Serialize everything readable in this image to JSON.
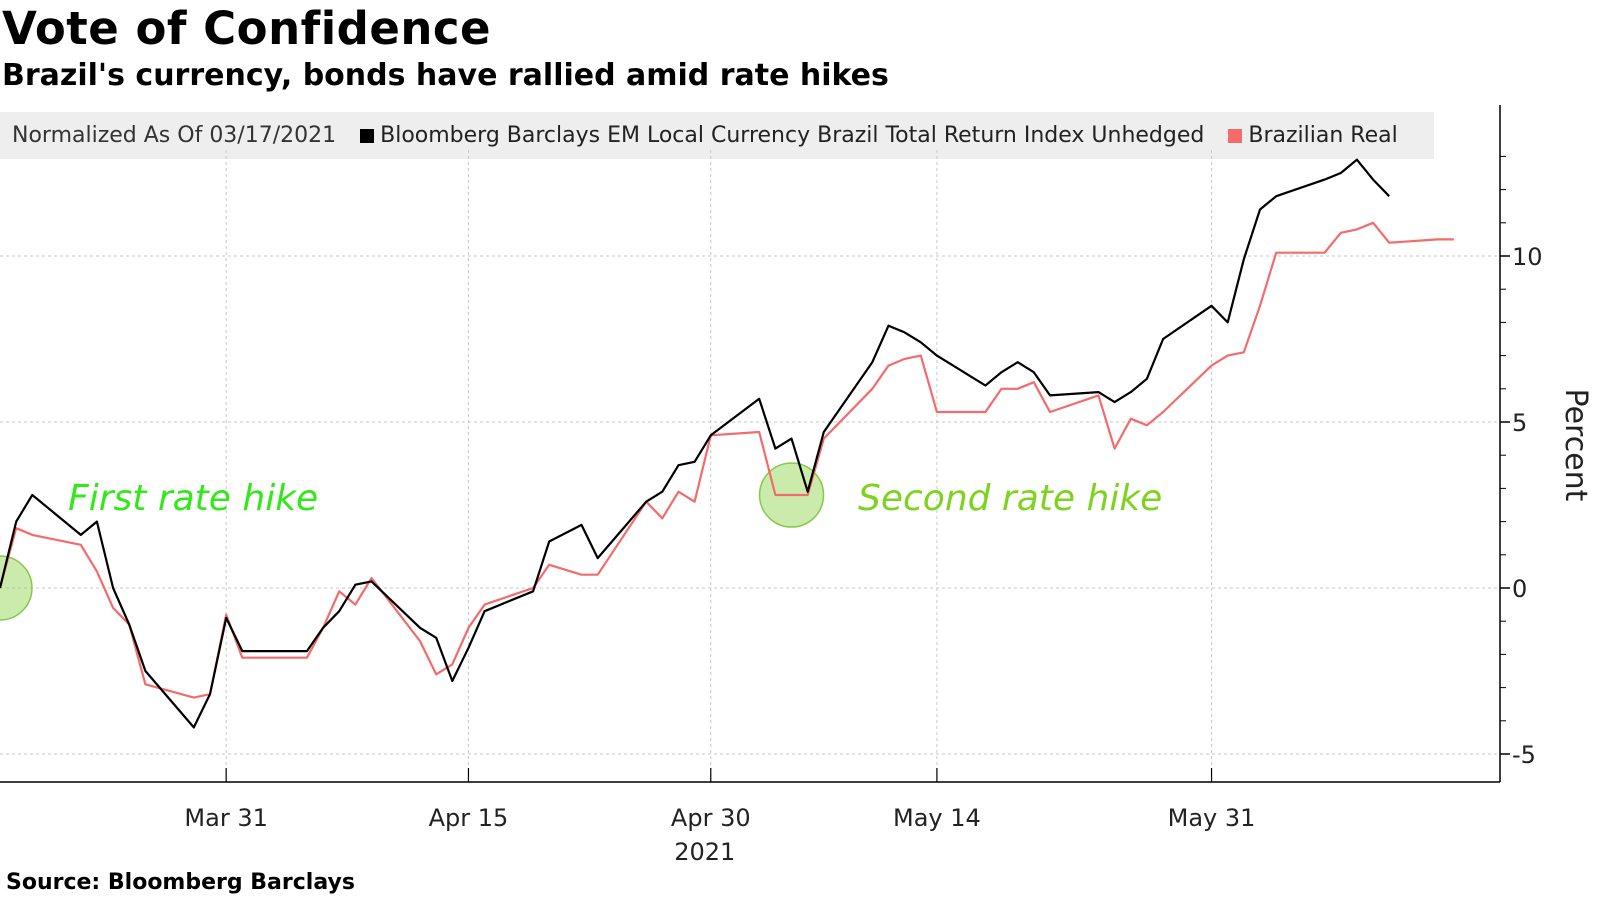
{
  "title": "Vote of Confidence",
  "subtitle": "Brazil's currency, bonds have rallied amid rate hikes",
  "source": "Source: Bloomberg Barclays",
  "legend": {
    "note": "Normalized As Of 03/17/2021",
    "items": [
      {
        "label": "Bloomberg Barclays EM Local Currency Brazil Total Return Index Unhedged",
        "color": "#000000"
      },
      {
        "label": "Brazilian Real",
        "color": "#f56a6a"
      }
    ]
  },
  "chart_data": {
    "type": "line",
    "ylabel": "Percent",
    "ylim": [
      -5.9,
      14.5
    ],
    "yticks": [
      "10",
      "5",
      "0",
      "-5"
    ],
    "xticks": [
      {
        "date": "2021-03-31",
        "label": "Mar 31"
      },
      {
        "date": "2021-04-15",
        "label": "Apr 15"
      },
      {
        "date": "2021-04-30",
        "label": "Apr 30"
      },
      {
        "date": "2021-05-14",
        "label": "May 14"
      },
      {
        "date": "2021-05-31",
        "label": "May 31"
      }
    ],
    "year_label": "2021",
    "grid": true,
    "series": [
      {
        "name": "Bloomberg Barclays EM Local Currency Brazil Total Return Index Unhedged",
        "color": "#000000",
        "points": [
          [
            "2021-03-17",
            0.0
          ],
          [
            "2021-03-18",
            2.0
          ],
          [
            "2021-03-19",
            2.8
          ],
          [
            "2021-03-22",
            1.6
          ],
          [
            "2021-03-23",
            2.0
          ],
          [
            "2021-03-24",
            0.0
          ],
          [
            "2021-03-25",
            -1.1
          ],
          [
            "2021-03-26",
            -2.5
          ],
          [
            "2021-03-29",
            -4.2
          ],
          [
            "2021-03-30",
            -3.2
          ],
          [
            "2021-03-31",
            -0.9
          ],
          [
            "2021-04-01",
            -1.9
          ],
          [
            "2021-04-05",
            -1.9
          ],
          [
            "2021-04-06",
            -1.2
          ],
          [
            "2021-04-07",
            -0.7
          ],
          [
            "2021-04-08",
            0.1
          ],
          [
            "2021-04-09",
            0.2
          ],
          [
            "2021-04-12",
            -1.2
          ],
          [
            "2021-04-13",
            -1.5
          ],
          [
            "2021-04-14",
            -2.8
          ],
          [
            "2021-04-15",
            -1.8
          ],
          [
            "2021-04-16",
            -0.7
          ],
          [
            "2021-04-19",
            -0.1
          ],
          [
            "2021-04-20",
            1.4
          ],
          [
            "2021-04-22",
            1.9
          ],
          [
            "2021-04-23",
            0.9
          ],
          [
            "2021-04-26",
            2.6
          ],
          [
            "2021-04-27",
            2.9
          ],
          [
            "2021-04-28",
            3.7
          ],
          [
            "2021-04-29",
            3.8
          ],
          [
            "2021-04-30",
            4.6
          ],
          [
            "2021-05-03",
            5.7
          ],
          [
            "2021-05-04",
            4.2
          ],
          [
            "2021-05-05",
            4.5
          ],
          [
            "2021-05-06",
            2.9
          ],
          [
            "2021-05-07",
            4.7
          ],
          [
            "2021-05-10",
            6.8
          ],
          [
            "2021-05-11",
            7.9
          ],
          [
            "2021-05-12",
            7.7
          ],
          [
            "2021-05-13",
            7.4
          ],
          [
            "2021-05-14",
            7.0
          ],
          [
            "2021-05-17",
            6.1
          ],
          [
            "2021-05-18",
            6.5
          ],
          [
            "2021-05-19",
            6.8
          ],
          [
            "2021-05-20",
            6.5
          ],
          [
            "2021-05-21",
            5.8
          ],
          [
            "2021-05-24",
            5.9
          ],
          [
            "2021-05-25",
            5.6
          ],
          [
            "2021-05-26",
            5.9
          ],
          [
            "2021-05-27",
            6.3
          ],
          [
            "2021-05-28",
            7.5
          ],
          [
            "2021-05-31",
            8.5
          ],
          [
            "2021-06-01",
            8.0
          ],
          [
            "2021-06-02",
            9.9
          ],
          [
            "2021-06-03",
            11.4
          ],
          [
            "2021-06-04",
            11.8
          ],
          [
            "2021-06-07",
            12.3
          ],
          [
            "2021-06-08",
            12.5
          ],
          [
            "2021-06-09",
            12.9
          ],
          [
            "2021-06-10",
            12.3
          ],
          [
            "2021-06-11",
            11.8
          ]
        ]
      },
      {
        "name": "Brazilian Real",
        "color": "#f56a6a",
        "points": [
          [
            "2021-03-17",
            0.0
          ],
          [
            "2021-03-18",
            1.8
          ],
          [
            "2021-03-19",
            1.6
          ],
          [
            "2021-03-22",
            1.3
          ],
          [
            "2021-03-23",
            0.5
          ],
          [
            "2021-03-24",
            -0.6
          ],
          [
            "2021-03-25",
            -1.1
          ],
          [
            "2021-03-26",
            -2.9
          ],
          [
            "2021-03-29",
            -3.3
          ],
          [
            "2021-03-30",
            -3.2
          ],
          [
            "2021-03-31",
            -0.8
          ],
          [
            "2021-04-01",
            -2.1
          ],
          [
            "2021-04-05",
            -2.1
          ],
          [
            "2021-04-06",
            -1.2
          ],
          [
            "2021-04-07",
            -0.1
          ],
          [
            "2021-04-08",
            -0.5
          ],
          [
            "2021-04-09",
            0.3
          ],
          [
            "2021-04-12",
            -1.6
          ],
          [
            "2021-04-13",
            -2.6
          ],
          [
            "2021-04-14",
            -2.3
          ],
          [
            "2021-04-15",
            -1.2
          ],
          [
            "2021-04-16",
            -0.5
          ],
          [
            "2021-04-19",
            0.0
          ],
          [
            "2021-04-20",
            0.7
          ],
          [
            "2021-04-22",
            0.4
          ],
          [
            "2021-04-23",
            0.4
          ],
          [
            "2021-04-26",
            2.6
          ],
          [
            "2021-04-27",
            2.1
          ],
          [
            "2021-04-28",
            2.9
          ],
          [
            "2021-04-29",
            2.6
          ],
          [
            "2021-04-30",
            4.6
          ],
          [
            "2021-05-03",
            4.7
          ],
          [
            "2021-05-04",
            2.8
          ],
          [
            "2021-05-05",
            2.8
          ],
          [
            "2021-05-06",
            2.8
          ],
          [
            "2021-05-07",
            4.5
          ],
          [
            "2021-05-10",
            6.0
          ],
          [
            "2021-05-11",
            6.7
          ],
          [
            "2021-05-12",
            6.9
          ],
          [
            "2021-05-13",
            7.0
          ],
          [
            "2021-05-14",
            5.3
          ],
          [
            "2021-05-17",
            5.3
          ],
          [
            "2021-05-18",
            6.0
          ],
          [
            "2021-05-19",
            6.0
          ],
          [
            "2021-05-20",
            6.2
          ],
          [
            "2021-05-21",
            5.3
          ],
          [
            "2021-05-24",
            5.8
          ],
          [
            "2021-05-25",
            4.2
          ],
          [
            "2021-05-26",
            5.1
          ],
          [
            "2021-05-27",
            4.9
          ],
          [
            "2021-05-28",
            5.3
          ],
          [
            "2021-05-31",
            6.7
          ],
          [
            "2021-06-01",
            7.0
          ],
          [
            "2021-06-02",
            7.1
          ],
          [
            "2021-06-03",
            8.5
          ],
          [
            "2021-06-04",
            10.1
          ],
          [
            "2021-06-07",
            10.1
          ],
          [
            "2021-06-08",
            10.7
          ],
          [
            "2021-06-09",
            10.8
          ],
          [
            "2021-06-10",
            11.0
          ],
          [
            "2021-06-11",
            10.4
          ],
          [
            "2021-06-14",
            10.5
          ],
          [
            "2021-06-15",
            10.5
          ]
        ]
      }
    ],
    "annotations": [
      {
        "text": "First rate hike",
        "date": "2021-03-17",
        "value": 0.0,
        "color": "#33e81a"
      },
      {
        "text": "Second rate hike",
        "date": "2021-05-05",
        "value": 2.8,
        "color": "#7ed321"
      }
    ]
  }
}
